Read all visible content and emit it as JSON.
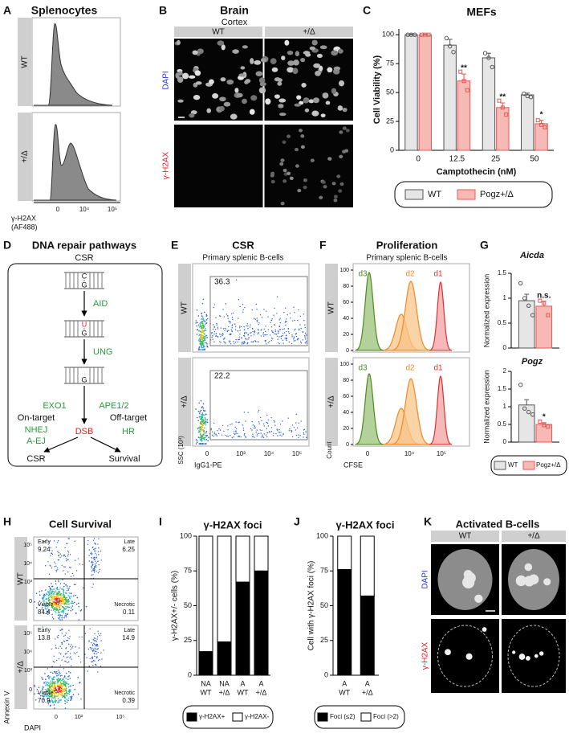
{
  "panel_letters": [
    "A",
    "B",
    "C",
    "D",
    "E",
    "F",
    "G",
    "H",
    "I",
    "J",
    "K"
  ],
  "splenocytes": {
    "title": "Splenocytes",
    "rows": [
      "WT",
      "+/Δ"
    ],
    "xticks": [
      "0",
      "10⁴",
      "10⁵"
    ],
    "xlabel": [
      "γ-H2AX",
      "(AF488)"
    ]
  },
  "brain": {
    "title": "Brain",
    "subtitle": "Cortex",
    "columns": [
      "WT",
      "+/Δ"
    ],
    "rows": [
      "DAPI",
      "γ-H2AX"
    ]
  },
  "dna_repair": {
    "title": "DNA repair pathways",
    "subtitle": "CSR",
    "strand_1": [
      "C",
      "G"
    ],
    "enzyme_1": "AID",
    "strand_2": [
      "U",
      "G"
    ],
    "enzyme_2": "UNG",
    "strand_3": [
      "G"
    ],
    "nucleases": [
      "EXO1",
      "APE1/2"
    ],
    "branches": [
      "On-target",
      "Off-target"
    ],
    "on_target": [
      "NHEJ",
      "A-EJ"
    ],
    "break": "DSB",
    "off_target": "HR",
    "outcomes": [
      "CSR",
      "Survival"
    ]
  },
  "csr": {
    "title": "CSR",
    "subtitle": "Primary splenic B-cells",
    "rows": [
      "WT",
      "+/Δ"
    ],
    "gates": [
      36.3,
      22.2
    ],
    "xticks": [
      "0",
      "10³",
      "10⁴",
      "10⁵"
    ],
    "xlabel": "IgG1-PE",
    "ylabel": "SSC (10³)"
  },
  "proliferation": {
    "title": "Proliferation",
    "subtitle": "Primary splenic B-cells",
    "rows": [
      "WT",
      "+/Δ"
    ],
    "yticks": [
      0,
      20,
      40,
      60,
      80,
      100
    ],
    "peaks": [
      "d3",
      "d2",
      "d1"
    ],
    "xticks": [
      "0",
      "10⁴",
      "10⁵"
    ],
    "xlabel": "CFSE",
    "ylabel": "Count"
  },
  "survival": {
    "title": "Cell Survival",
    "rows": [
      "WT",
      "+/Δ"
    ],
    "quadrants": [
      "Early",
      "Late",
      "Viable",
      "Necrotic"
    ],
    "values": [
      [
        9.24,
        6.25,
        84.4,
        0.11
      ],
      [
        13.8,
        14.9,
        70.9,
        0.39
      ]
    ],
    "yticks": [
      "0",
      "10³",
      "10⁴",
      "10⁵"
    ],
    "xticks": [
      "0",
      "10³",
      "10⁵"
    ],
    "xlabel": "DAPI",
    "ylabel": "Annexin V"
  },
  "activated": {
    "title": "Activated B-cells",
    "columns": [
      "WT",
      "+/Δ"
    ],
    "rows": [
      "DAPI",
      "γ-H2AX"
    ]
  },
  "chart_data": [
    {
      "type": "bar",
      "title": "MEFs",
      "ylabel": "Cell Viability (%)",
      "xlabel": "Camptothecin (nM)",
      "categories": [
        "0",
        "12.5",
        "25",
        "50"
      ],
      "ylim": [
        0,
        105
      ],
      "yticks": [
        0,
        25,
        50,
        75,
        100
      ],
      "series": [
        {
          "name": "WT",
          "color": "#e6e6e6",
          "edgecolor": "#555555",
          "marker": "circle",
          "values": [
            100,
            91,
            80,
            48
          ],
          "errors": [
            0.5,
            5,
            4,
            1.5
          ],
          "points": [
            [
              100,
              100,
              100
            ],
            [
              97,
              90,
              85
            ],
            [
              84,
              80,
              72
            ],
            [
              49,
              47,
              46
            ]
          ]
        },
        {
          "name": "Pogz+/Δ",
          "color": "#f7b9b6",
          "edgecolor": "#e05a55",
          "marker": "square",
          "values": [
            100,
            60,
            37,
            23
          ],
          "errors": [
            0.5,
            6,
            4,
            3
          ],
          "points": [
            [
              100,
              100,
              100
            ],
            [
              68,
              60,
              52
            ],
            [
              43,
              37,
              31
            ],
            [
              26,
              22,
              20
            ]
          ],
          "significance": [
            null,
            "**",
            "**",
            "*"
          ]
        }
      ]
    },
    {
      "type": "bar",
      "title": "Aicda",
      "title_italic": true,
      "ylabel": "Normalized expression",
      "ylim": [
        0,
        1.5
      ],
      "yticks": [
        0,
        0.5,
        1,
        1.5
      ],
      "series": [
        {
          "name": "WT",
          "color": "#e6e6e6",
          "edgecolor": "#555555",
          "marker": "circle",
          "values": [
            0.95
          ],
          "errors": [
            0.13
          ],
          "points": [
            [
              1.3,
              1.0,
              0.85,
              0.66
            ]
          ]
        },
        {
          "name": "Pogz+/Δ",
          "color": "#f7b9b6",
          "edgecolor": "#e05a55",
          "marker": "square",
          "values": [
            0.84
          ],
          "errors": [
            0.1
          ],
          "points": [
            [
              0.95,
              0.9,
              0.66
            ]
          ],
          "significance": [
            "n.s."
          ]
        }
      ]
    },
    {
      "type": "bar",
      "title": "Pogz",
      "title_italic": true,
      "ylabel": "Normalized expression",
      "ylim": [
        0,
        2
      ],
      "yticks": [
        0,
        0.5,
        1,
        1.5,
        2
      ],
      "series": [
        {
          "color": "#e6e6e6",
          "edgecolor": "#555555",
          "marker": "circle",
          "values": [
            1.05
          ],
          "errors": [
            0.15
          ],
          "points": [
            [
              1.62,
              0.95,
              0.85,
              0.78
            ]
          ]
        },
        {
          "color": "#f7b9b6",
          "edgecolor": "#e05a55",
          "marker": "square",
          "values": [
            0.5
          ],
          "errors": [
            0.05
          ],
          "points": [
            [
              0.58,
              0.48,
              0.44
            ]
          ],
          "significance": [
            "*"
          ]
        }
      ]
    },
    {
      "type": "stacked_bar",
      "title": "γ-H2AX foci",
      "ylabel": "γ-H2AX+/- cells (%)",
      "categories": [
        "NA",
        "NA",
        "A",
        "A"
      ],
      "genotypes": [
        "WT",
        "+/Δ",
        "WT",
        "+/Δ"
      ],
      "ylim": [
        0,
        100
      ],
      "yticks": [
        0,
        25,
        50,
        75,
        100
      ],
      "series": [
        {
          "name": "γ-H2AX+",
          "color": "#000000",
          "values": [
            17,
            24,
            67,
            75
          ]
        },
        {
          "name": "γ-H2AX-",
          "color": "#ffffff",
          "values": [
            83,
            76,
            33,
            25
          ]
        }
      ]
    },
    {
      "type": "stacked_bar",
      "title": "γ-H2AX foci",
      "ylabel": "Cell with γ-H2AX foci (%)",
      "categories": [
        "A",
        "A"
      ],
      "genotypes": [
        "WT",
        "+/Δ"
      ],
      "ylim": [
        0,
        100
      ],
      "yticks": [
        0,
        25,
        50,
        75,
        100
      ],
      "series": [
        {
          "name": "Foci (≤2)",
          "color": "#000000",
          "values": [
            76,
            57
          ]
        },
        {
          "name": "Foci (>2)",
          "color": "#ffffff",
          "values": [
            24,
            43
          ]
        }
      ]
    }
  ]
}
